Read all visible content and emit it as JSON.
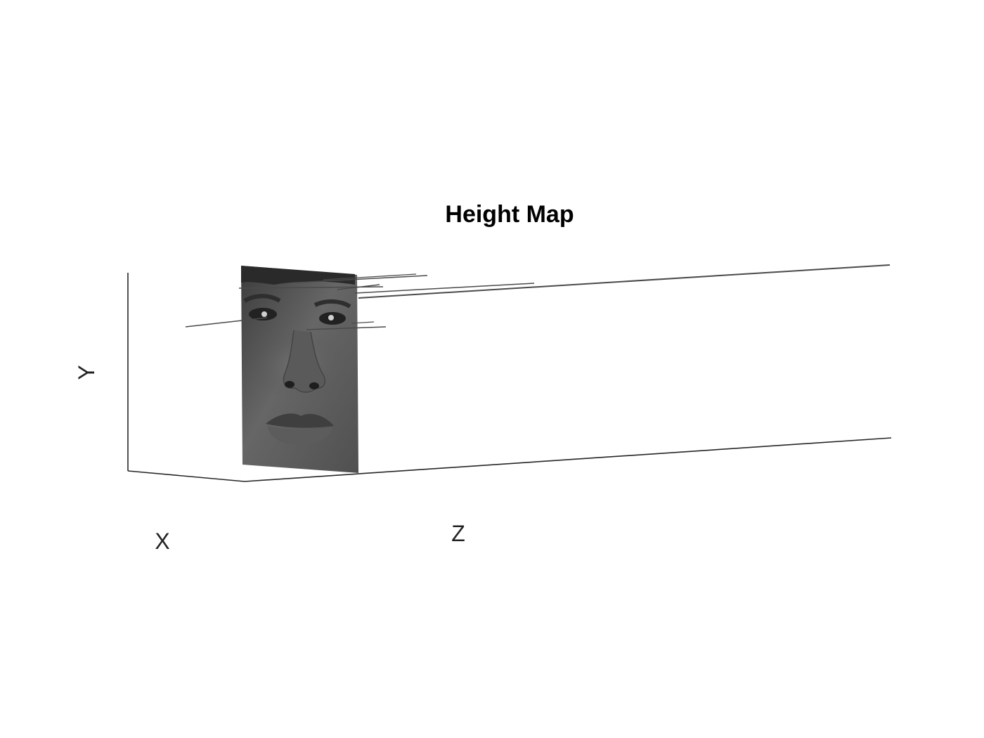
{
  "chart_data": {
    "type": "surface",
    "title": "Height Map",
    "xlabel": "X",
    "ylabel": "Y",
    "zlabel": "Z",
    "texture": "grayscale-face-photo",
    "colormap": "gray",
    "grid": false,
    "box": false
  },
  "colors": {
    "background": "#ffffff",
    "axis": "#262626",
    "surface_dark": "#3a3a3a",
    "surface_light": "#6e6e6e"
  }
}
